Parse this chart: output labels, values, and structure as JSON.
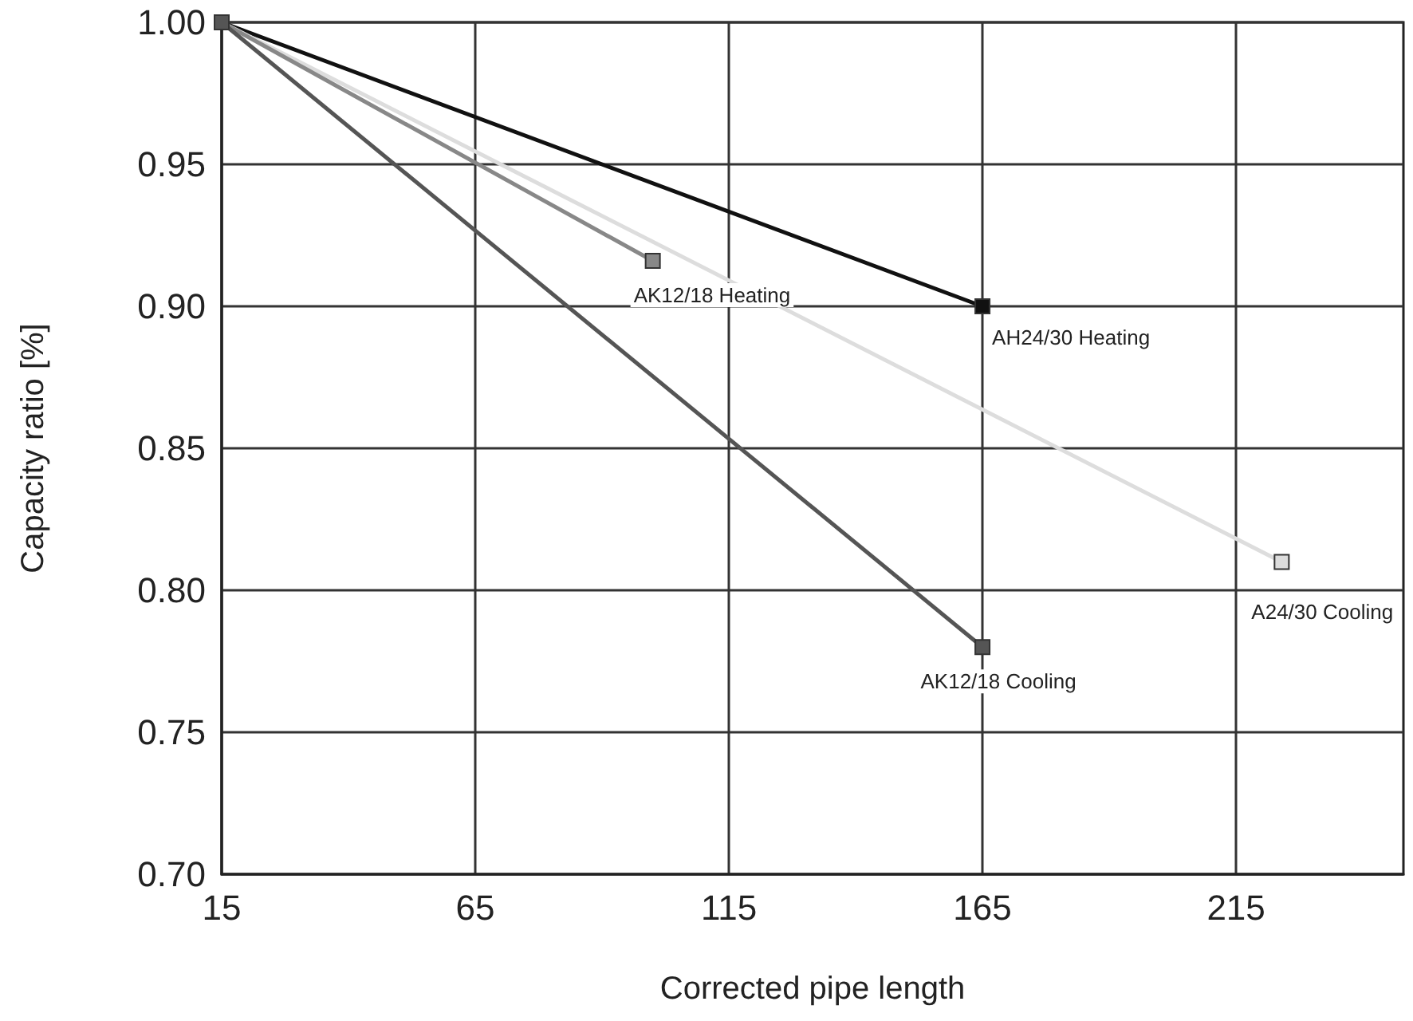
{
  "chart_data": {
    "type": "line",
    "xlabel": "Corrected pipe length",
    "ylabel": "Capacity ratio [%]",
    "xlim": [
      15,
      248
    ],
    "xticks": [
      15,
      65,
      115,
      165,
      215
    ],
    "ylim": [
      0.7,
      1.0
    ],
    "yticks": [
      {
        "value": 0.7,
        "label": "0.70"
      },
      {
        "value": 0.75,
        "label": "0.75"
      },
      {
        "value": 0.8,
        "label": "0.80"
      },
      {
        "value": 0.85,
        "label": "0.85"
      },
      {
        "value": 0.9,
        "label": "0.90"
      },
      {
        "value": 0.95,
        "label": "0.95"
      },
      {
        "value": 1.0,
        "label": "1.00"
      }
    ],
    "grid": true,
    "legend": false,
    "marker": "square",
    "line_style": "solid",
    "series": [
      {
        "name": "AH24/30 Heating",
        "color": "#111111",
        "x": [
          15,
          165
        ],
        "values": [
          1.0,
          0.9
        ]
      },
      {
        "name": "A24/30 Cooling",
        "color": "#dddddd",
        "x": [
          15,
          224
        ],
        "values": [
          1.0,
          0.81
        ]
      },
      {
        "name": "AK12/18 Heating",
        "color": "#888888",
        "x": [
          15,
          100
        ],
        "values": [
          1.0,
          0.916
        ]
      },
      {
        "name": "AK12/18 Cooling",
        "color": "#555555",
        "x": [
          15,
          165
        ],
        "values": [
          1.0,
          0.78
        ]
      }
    ]
  }
}
